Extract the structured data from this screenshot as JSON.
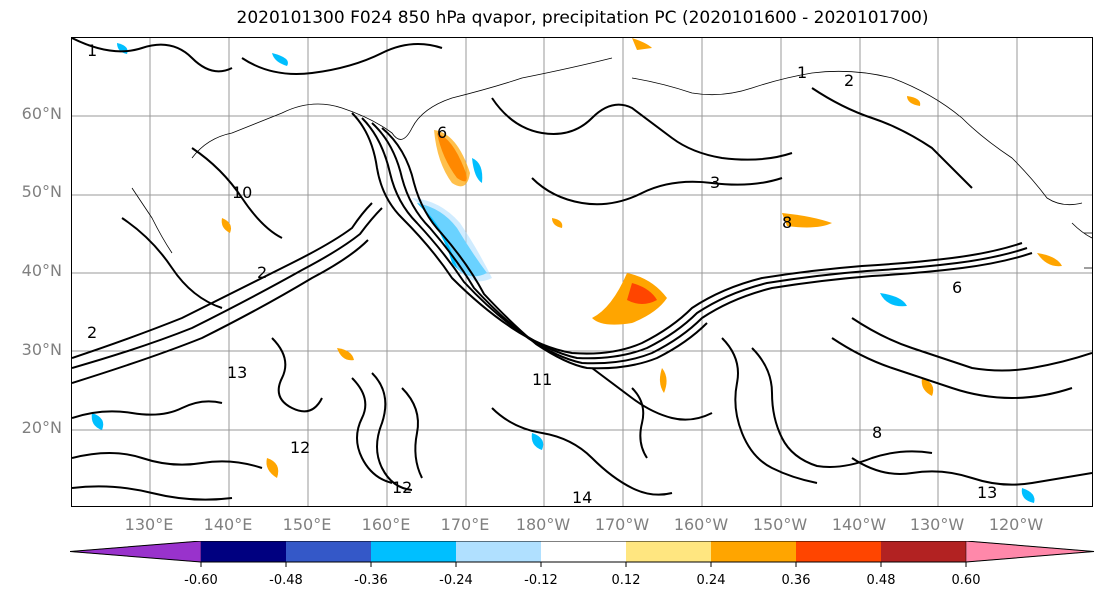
{
  "title": "2020101300 F024 850 hPa qvapor, precipitation PC (2020101600 - 2020101700)",
  "lat_labels": [
    "60°N",
    "50°N",
    "40°N",
    "30°N",
    "20°N"
  ],
  "lon_labels": [
    "130°E",
    "140°E",
    "150°E",
    "160°E",
    "170°E",
    "180°W",
    "170°W",
    "160°W",
    "150°W",
    "140°W",
    "130°W",
    "120°W"
  ],
  "colorbar": {
    "colors": [
      "#9932cc",
      "#000080",
      "#3458c8",
      "#00bfff",
      "#b0e0ff",
      "#ffffff",
      "#ffe680",
      "#ffa500",
      "#ff4500",
      "#b22222",
      "#ff88aa"
    ],
    "labels": [
      "-0.60",
      "-0.48",
      "-0.36",
      "-0.24",
      "-0.12",
      "0.12",
      "0.24",
      "0.36",
      "0.48",
      "0.60"
    ]
  },
  "contour_labels": [
    "1",
    "2",
    "3",
    "6",
    "8",
    "10",
    "11",
    "12",
    "13",
    "14"
  ]
}
